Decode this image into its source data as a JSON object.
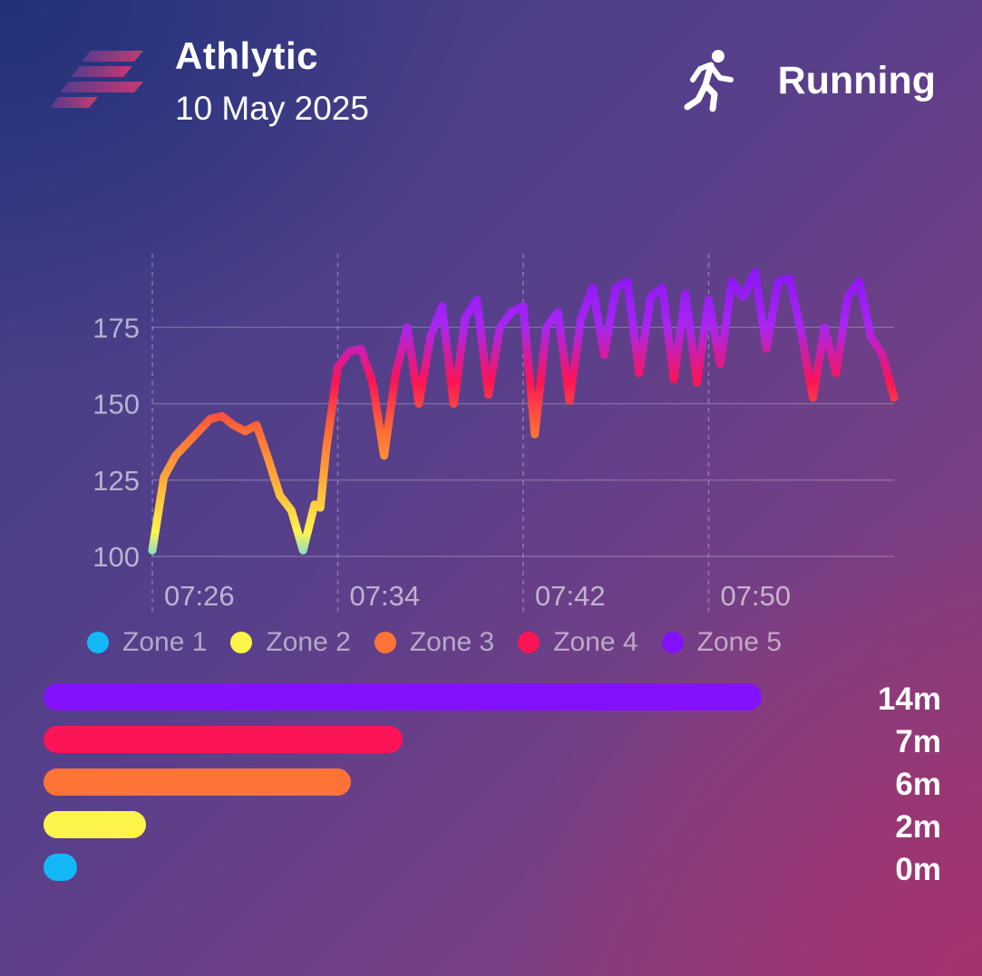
{
  "header": {
    "app_name": "Athlytic",
    "date": "10 May 2025",
    "activity": "Running",
    "activity_icon": "running-person-icon",
    "logo_icon": "athlytic-logo-icon"
  },
  "chart_data": {
    "type": "line",
    "title": "",
    "xlabel": "",
    "ylabel": "",
    "x_ticks": [
      "07:26",
      "07:34",
      "07:42",
      "07:50"
    ],
    "y_ticks": [
      100,
      125,
      150,
      175
    ],
    "ylim": [
      100,
      195
    ],
    "x_range": [
      "07:26",
      "07:58"
    ],
    "grid": true,
    "series": [
      {
        "x": [
          "07:26",
          "07:26:30",
          "07:27",
          "07:27:30",
          "07:28",
          "07:28:30",
          "07:29",
          "07:29:30",
          "07:30",
          "07:30:30",
          "07:31",
          "07:31:30",
          "07:32",
          "07:32:30",
          "07:33",
          "07:33:15",
          "07:33:30",
          "07:34",
          "07:34:30",
          "07:35",
          "07:35:30",
          "07:36",
          "07:36:30",
          "07:37",
          "07:37:30",
          "07:38",
          "07:38:30",
          "07:39",
          "07:39:30",
          "07:40",
          "07:40:30",
          "07:41",
          "07:41:30",
          "07:42",
          "07:42:30",
          "07:43",
          "07:43:30",
          "07:44",
          "07:44:30",
          "07:45",
          "07:45:30",
          "07:46",
          "07:46:30",
          "07:47",
          "07:47:30",
          "07:48",
          "07:48:30",
          "07:49",
          "07:49:30",
          "07:50",
          "07:50:30",
          "07:51",
          "07:51:30",
          "07:52",
          "07:52:30",
          "07:53",
          "07:53:30",
          "07:54",
          "07:54:30",
          "07:55",
          "07:55:30",
          "07:56",
          "07:56:30",
          "07:57",
          "07:57:30",
          "07:58"
        ],
        "values": [
          102,
          126,
          133,
          137,
          141,
          145,
          146,
          143,
          141,
          143,
          132,
          120,
          115,
          102,
          117,
          116,
          135,
          162,
          167,
          168,
          157,
          133,
          160,
          175,
          150,
          172,
          182,
          150,
          178,
          184,
          153,
          175,
          180,
          182,
          140,
          175,
          180,
          151,
          178,
          188,
          166,
          188,
          190,
          160,
          185,
          188,
          158,
          186,
          157,
          184,
          163,
          190,
          185,
          193,
          168,
          190,
          191,
          173,
          152,
          175,
          160,
          185,
          190,
          172,
          166,
          152
        ]
      }
    ]
  },
  "legend": [
    {
      "label": "Zone 1",
      "color": "#12b8f6"
    },
    {
      "label": "Zone 2",
      "color": "#fdf44b"
    },
    {
      "label": "Zone 3",
      "color": "#ff7336"
    },
    {
      "label": "Zone 4",
      "color": "#fb1456"
    },
    {
      "label": "Zone 5",
      "color": "#8411fb"
    }
  ],
  "zones": [
    {
      "zone": "Zone 5",
      "minutes": 14,
      "label": "14m",
      "color": "#8411fb"
    },
    {
      "zone": "Zone 4",
      "minutes": 7,
      "label": "7m",
      "color": "#fb1456"
    },
    {
      "zone": "Zone 3",
      "minutes": 6,
      "label": "6m",
      "color": "#ff7336"
    },
    {
      "zone": "Zone 2",
      "minutes": 2,
      "label": "2m",
      "color": "#fdf44b"
    },
    {
      "zone": "Zone 1",
      "minutes": 0,
      "label": "0m",
      "color": "#12b8f6"
    }
  ]
}
